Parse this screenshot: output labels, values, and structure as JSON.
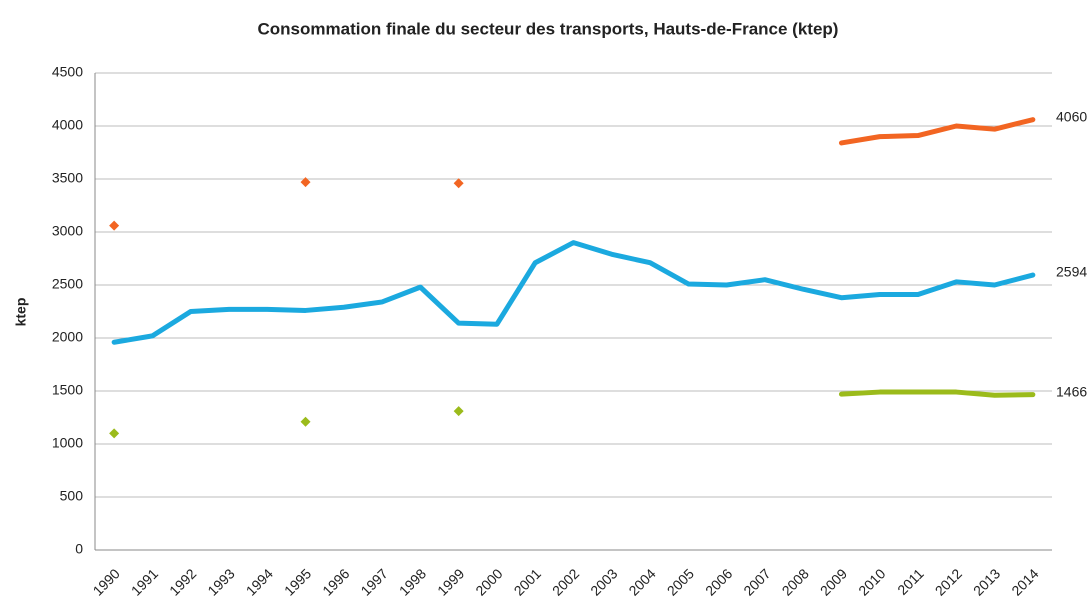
{
  "chart_data": {
    "type": "line",
    "title": "Consommation finale du secteur des transports, Hauts-de-France (ktep)",
    "y_label": "ktep",
    "categories": [
      "1990",
      "1991",
      "1992",
      "1993",
      "1994",
      "1995",
      "1996",
      "1997",
      "1998",
      "1999",
      "2000",
      "2001",
      "2002",
      "2003",
      "2004",
      "2005",
      "2006",
      "2007",
      "2008",
      "2009",
      "2010",
      "2011",
      "2012",
      "2013",
      "2014"
    ],
    "series": [
      {
        "color": "#f26522",
        "values": [
          3060,
          null,
          null,
          null,
          null,
          3470,
          null,
          null,
          null,
          3460,
          null,
          null,
          null,
          null,
          null,
          null,
          null,
          null,
          null,
          3840,
          3900,
          3910,
          4000,
          3970,
          4060
        ]
      },
      {
        "color": "#1ba9df",
        "values": [
          1960,
          2020,
          2250,
          2270,
          2270,
          2260,
          2290,
          2340,
          2480,
          2140,
          2130,
          2710,
          2900,
          2790,
          2710,
          2510,
          2500,
          2550,
          2460,
          2380,
          2410,
          2410,
          2530,
          2500,
          2594
        ]
      },
      {
        "color": "#9bbb1b",
        "values": [
          1100,
          null,
          null,
          null,
          null,
          1210,
          null,
          null,
          null,
          1310,
          null,
          null,
          null,
          null,
          null,
          null,
          null,
          null,
          null,
          1470,
          1490,
          1490,
          1490,
          1460,
          1466
        ]
      }
    ],
    "ylim": [
      0,
      4500
    ],
    "yticks": [
      0,
      500,
      1000,
      1500,
      2000,
      2500,
      3000,
      3500,
      4000,
      4500
    ],
    "grid": true
  }
}
